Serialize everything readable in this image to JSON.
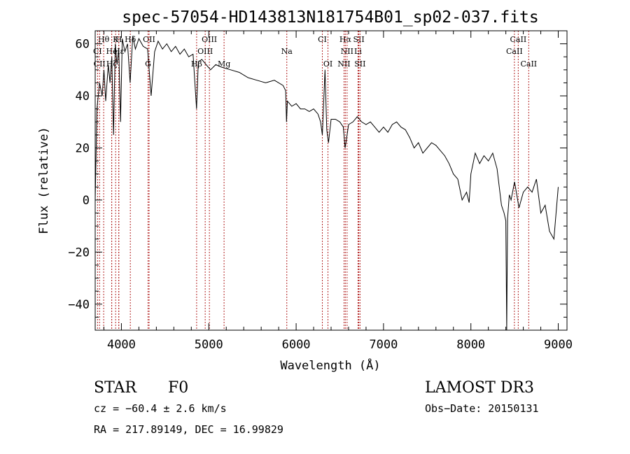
{
  "chart_data": {
    "type": "line",
    "title": "spec-57054-HD143813N181754B01_sp02-037.fits",
    "xlabel": "Wavelength (Å)",
    "ylabel": "Flux (relative)",
    "xlim": [
      3700,
      9100
    ],
    "ylim": [
      -50,
      65
    ],
    "x_ticks": [
      4000,
      5000,
      6000,
      7000,
      8000,
      9000
    ],
    "y_ticks": [
      -40,
      -20,
      0,
      20,
      40,
      60
    ],
    "grid": false,
    "series": [
      {
        "x": [
          3700,
          3720,
          3750,
          3780,
          3800,
          3820,
          3850,
          3870,
          3890,
          3910,
          3930,
          3950,
          3970,
          3990,
          4010,
          4040,
          4070,
          4100,
          4130,
          4160,
          4200,
          4250,
          4300,
          4340,
          4380,
          4420,
          4470,
          4520,
          4570,
          4620,
          4670,
          4720,
          4770,
          4820,
          4860,
          4880,
          4920,
          4970,
          5020,
          5080,
          5150,
          5250,
          5350,
          5450,
          5550,
          5650,
          5750,
          5850,
          5880,
          5890,
          5900,
          5950,
          6000,
          6050,
          6100,
          6150,
          6200,
          6250,
          6280,
          6300,
          6330,
          6350,
          6370,
          6400,
          6450,
          6500,
          6540,
          6560,
          6570,
          6600,
          6650,
          6700,
          6750,
          6800,
          6850,
          6900,
          6950,
          7000,
          7050,
          7100,
          7150,
          7200,
          7250,
          7300,
          7350,
          7400,
          7450,
          7500,
          7550,
          7600,
          7650,
          7700,
          7750,
          7800,
          7850,
          7900,
          7950,
          7980,
          8000,
          8050,
          8100,
          8150,
          8200,
          8250,
          8300,
          8350,
          8380,
          8400,
          8410,
          8420,
          8440,
          8460,
          8500,
          8550,
          8600,
          8650,
          8700,
          8750,
          8800,
          8850,
          8900,
          8950,
          9000
        ],
        "y": [
          0,
          35,
          45,
          40,
          50,
          38,
          52,
          45,
          55,
          25,
          60,
          52,
          58,
          30,
          62,
          57,
          60,
          45,
          63,
          58,
          62,
          59,
          58,
          40,
          57,
          61,
          58,
          60,
          57,
          59,
          56,
          58,
          55,
          56,
          35,
          53,
          54,
          52,
          50,
          52,
          51,
          50,
          49,
          47,
          46,
          45,
          46,
          44,
          42,
          30,
          38,
          36,
          37,
          35,
          35,
          34,
          35,
          33,
          30,
          25,
          50,
          27,
          22,
          31,
          31,
          30,
          28,
          20,
          22,
          29,
          30,
          32,
          30,
          29,
          30,
          28,
          26,
          28,
          26,
          29,
          30,
          28,
          27,
          24,
          20,
          22,
          18,
          20,
          22,
          21,
          19,
          17,
          14,
          10,
          8,
          0,
          3,
          -1,
          10,
          18,
          14,
          17,
          15,
          18,
          12,
          -2,
          -5,
          -8,
          -50,
          -7,
          2,
          0,
          7,
          -3,
          3,
          5,
          3,
          8,
          -5,
          -2,
          -12,
          -15,
          5
        ]
      }
    ],
    "line_markers": [
      {
        "label": "Hθ",
        "x": 3797,
        "row": 0
      },
      {
        "label": "K",
        "x": 3934,
        "row": 0
      },
      {
        "label": "H",
        "x": 3970,
        "row": 0
      },
      {
        "label": "Hδ",
        "x": 4102,
        "row": 0
      },
      {
        "label": "OII",
        "x": 4317,
        "row": 0
      },
      {
        "label": "OIII",
        "x": 5007,
        "row": 0
      },
      {
        "label": "CI",
        "x": 6300,
        "row": 0
      },
      {
        "label": "Hα",
        "x": 6563,
        "row": 0
      },
      {
        "label": "SII",
        "x": 6717,
        "row": 0
      },
      {
        "label": "CaII",
        "x": 8542,
        "row": 0
      },
      {
        "label": "CI",
        "x": 3727,
        "row": 1
      },
      {
        "label": "He",
        "x": 3889,
        "row": 1
      },
      {
        "label": "Hε",
        "x": 3970,
        "row": 1
      },
      {
        "label": "OIII",
        "x": 4959,
        "row": 1
      },
      {
        "label": "Na",
        "x": 5893,
        "row": 1
      },
      {
        "label": "NII",
        "x": 6583,
        "row": 1
      },
      {
        "label": "Li",
        "x": 6708,
        "row": 1
      },
      {
        "label": "CaII",
        "x": 8498,
        "row": 1
      },
      {
        "label": "CII",
        "x": 3750,
        "row": 2
      },
      {
        "label": "Hζ",
        "x": 3889,
        "row": 2
      },
      {
        "label": "G",
        "x": 4305,
        "row": 2
      },
      {
        "label": "Hβ",
        "x": 4861,
        "row": 2
      },
      {
        "label": "Mg",
        "x": 5175,
        "row": 2
      },
      {
        "label": "OI",
        "x": 6364,
        "row": 2
      },
      {
        "label": "NII",
        "x": 6548,
        "row": 2
      },
      {
        "label": "SII",
        "x": 6731,
        "row": 2
      },
      {
        "label": "CaII",
        "x": 8662,
        "row": 2
      }
    ]
  },
  "info": {
    "object_type": "STAR",
    "subclass": "F0",
    "survey": "LAMOST DR3",
    "cz": "cz = −60.4 ± 2.6 km/s",
    "obs_date": "Obs−Date: 20150131",
    "coords": "RA = 217.89149, DEC =  16.99829"
  },
  "colors": {
    "line": "#000000",
    "marker": "#b22222"
  }
}
